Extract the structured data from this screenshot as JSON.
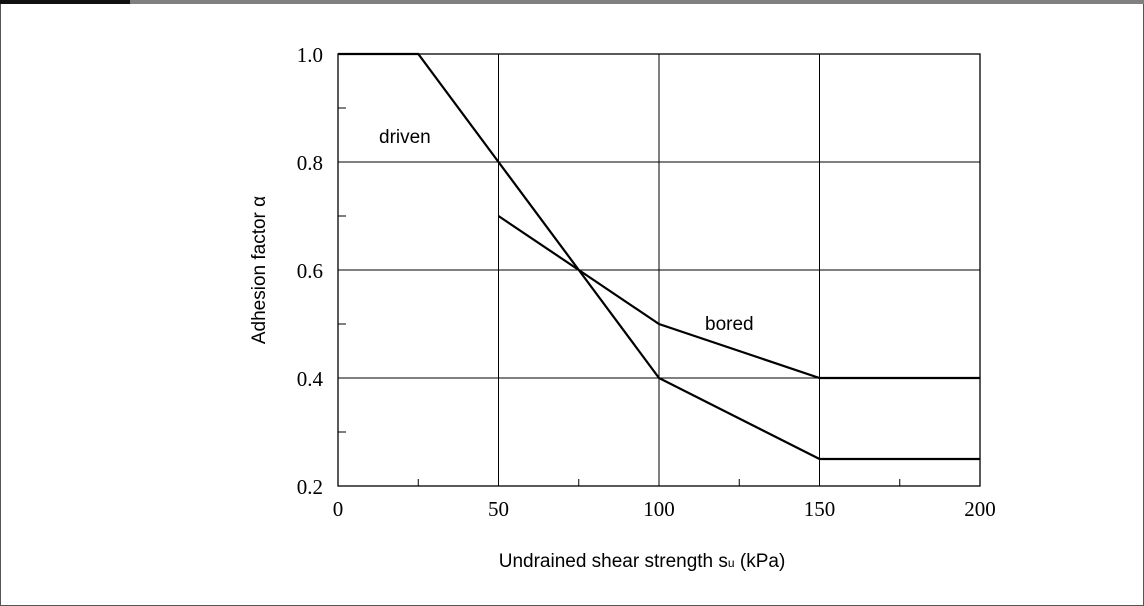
{
  "chart_data": {
    "type": "line",
    "xlabel": "Undrained shear strength s",
    "xlabel_sub": "u",
    "xlabel_unit": " (kPa)",
    "ylabel": "Adhesion factor α",
    "xlim": [
      0,
      200
    ],
    "ylim": [
      0.2,
      1.0
    ],
    "x_ticks": [
      0,
      50,
      100,
      150,
      200
    ],
    "y_ticks": [
      0.2,
      0.4,
      0.6,
      0.8,
      1.0
    ],
    "x_tick_labels": [
      "0",
      "50",
      "100",
      "150",
      "200"
    ],
    "y_tick_labels": [
      "0.2",
      "0.4",
      "0.6",
      "0.8",
      "1.0"
    ],
    "x_minor_ticks": [
      25,
      75,
      125,
      175
    ],
    "y_minor_ticks": [
      0.3,
      0.5,
      0.7,
      0.9
    ],
    "grid": true,
    "series": [
      {
        "name": "driven",
        "x": [
          0,
          25,
          50,
          75,
          100,
          150,
          200
        ],
        "y": [
          1.0,
          1.0,
          0.8,
          0.6,
          0.4,
          0.25,
          0.25
        ]
      },
      {
        "name": "bored",
        "x": [
          50,
          75,
          100,
          150,
          200
        ],
        "y": [
          0.7,
          0.6,
          0.5,
          0.4,
          0.4
        ]
      }
    ]
  }
}
